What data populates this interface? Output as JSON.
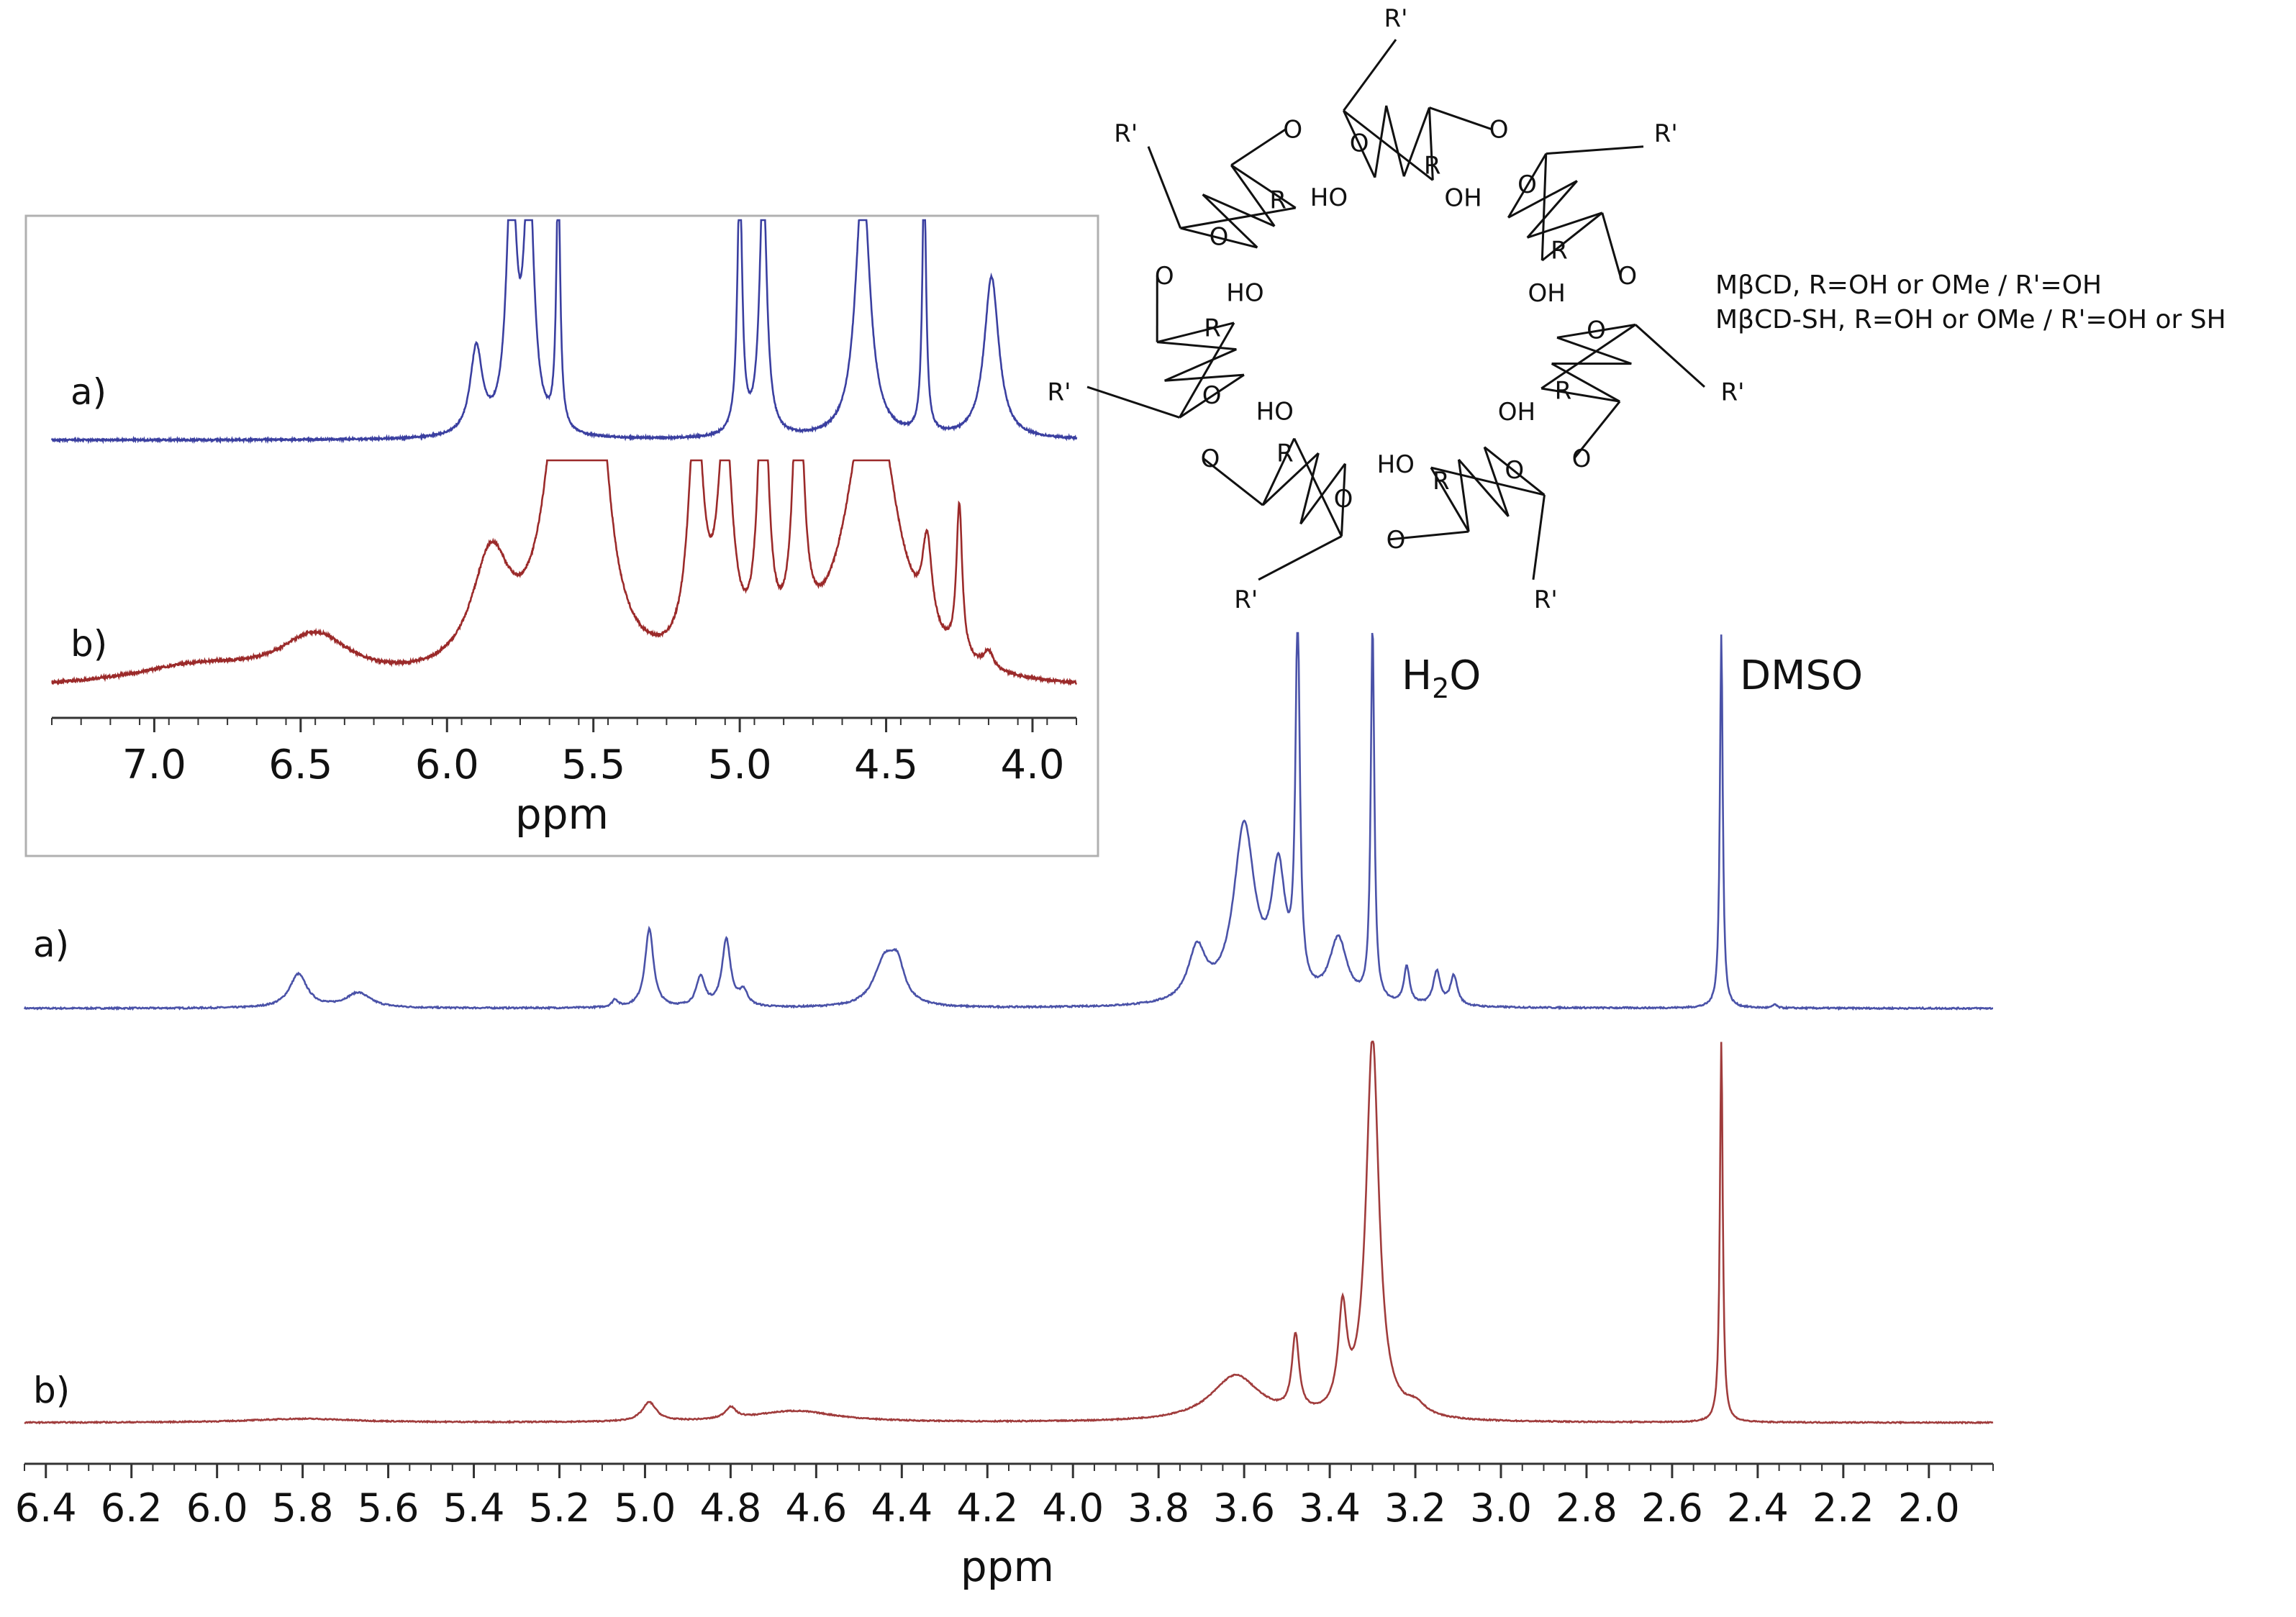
{
  "chart_data": [
    {
      "type": "line",
      "role": "main-spectrum",
      "xlabel": "ppm",
      "xlim": [
        6.45,
        1.85
      ],
      "x_reversed": true,
      "x_ticks": [
        "6.4",
        "6.2",
        "6.0",
        "5.8",
        "5.6",
        "5.4",
        "5.2",
        "5.0",
        "4.8",
        "4.6",
        "4.4",
        "4.2",
        "4.0",
        "3.8",
        "3.6",
        "3.4",
        "3.2",
        "3.0",
        "2.8",
        "2.6",
        "2.4",
        "2.2",
        "2.0"
      ],
      "series": [
        {
          "name": "a)",
          "color": "#4a52a8",
          "peaks": [
            {
              "ppm": 5.81,
              "height": 0.09,
              "width": 0.025
            },
            {
              "ppm": 5.67,
              "height": 0.04,
              "width": 0.035
            },
            {
              "ppm": 5.07,
              "height": 0.02,
              "width": 0.008
            },
            {
              "ppm": 4.99,
              "height": 0.21,
              "width": 0.012
            },
            {
              "ppm": 4.87,
              "height": 0.08,
              "width": 0.012
            },
            {
              "ppm": 4.81,
              "height": 0.18,
              "width": 0.012
            },
            {
              "ppm": 4.77,
              "height": 0.04,
              "width": 0.012
            },
            {
              "ppm": 4.44,
              "height": 0.12,
              "width": 0.03
            },
            {
              "ppm": 4.41,
              "height": 0.09,
              "width": 0.02
            },
            {
              "ppm": 3.71,
              "height": 0.14,
              "width": 0.025
            },
            {
              "ppm": 3.6,
              "height": 0.47,
              "width": 0.03
            },
            {
              "ppm": 3.52,
              "height": 0.33,
              "width": 0.02
            },
            {
              "ppm": 3.475,
              "height": 1.0,
              "width": 0.006
            },
            {
              "ppm": 3.38,
              "height": 0.17,
              "width": 0.025
            },
            {
              "ppm": 3.3,
              "height": 1.0,
              "width": 0.005
            },
            {
              "ppm": 3.22,
              "height": 0.1,
              "width": 0.008
            },
            {
              "ppm": 3.15,
              "height": 0.09,
              "width": 0.01
            },
            {
              "ppm": 3.11,
              "height": 0.08,
              "width": 0.01
            },
            {
              "ppm": 2.485,
              "height": 1.0,
              "width": 0.004
            },
            {
              "ppm": 2.36,
              "height": 0.01,
              "width": 0.005
            }
          ]
        },
        {
          "name": "b)",
          "color": "#a03c3c",
          "peaks": [
            {
              "ppm": 5.8,
              "height": 0.01,
              "width": 0.15
            },
            {
              "ppm": 4.99,
              "height": 0.05,
              "width": 0.02
            },
            {
              "ppm": 4.8,
              "height": 0.03,
              "width": 0.015
            },
            {
              "ppm": 4.65,
              "height": 0.03,
              "width": 0.12
            },
            {
              "ppm": 3.62,
              "height": 0.12,
              "width": 0.07
            },
            {
              "ppm": 3.48,
              "height": 0.2,
              "width": 0.01
            },
            {
              "ppm": 3.37,
              "height": 0.26,
              "width": 0.012
            },
            {
              "ppm": 3.3,
              "height": 1.0,
              "width": 0.018
            },
            {
              "ppm": 3.2,
              "height": 0.03,
              "width": 0.03
            },
            {
              "ppm": 2.485,
              "height": 1.0,
              "width": 0.004
            }
          ]
        }
      ],
      "annotations": [
        {
          "text": "H2O",
          "ppm": 3.3
        },
        {
          "text": "DMSO",
          "ppm": 2.485
        }
      ]
    },
    {
      "type": "line",
      "role": "inset-spectrum",
      "xlabel": "ppm",
      "xlim": [
        7.35,
        3.85
      ],
      "x_reversed": true,
      "x_ticks": [
        "7.0",
        "6.5",
        "6.0",
        "5.5",
        "5.0",
        "4.5",
        "4.0"
      ],
      "series": [
        {
          "name": "a)",
          "color": "#3a3fa0",
          "peaks": [
            {
              "ppm": 5.9,
              "height": 0.4,
              "width": 0.025
            },
            {
              "ppm": 5.78,
              "height": 1.2,
              "width": 0.02
            },
            {
              "ppm": 5.72,
              "height": 1.2,
              "width": 0.02
            },
            {
              "ppm": 5.62,
              "height": 1.2,
              "width": 0.008
            },
            {
              "ppm": 5.0,
              "height": 1.2,
              "width": 0.01
            },
            {
              "ppm": 4.92,
              "height": 1.2,
              "width": 0.015
            },
            {
              "ppm": 4.58,
              "height": 1.2,
              "width": 0.03
            },
            {
              "ppm": 4.37,
              "height": 1.2,
              "width": 0.008
            },
            {
              "ppm": 4.14,
              "height": 0.75,
              "width": 0.03
            }
          ]
        },
        {
          "name": "b)",
          "color": "#9b2a2a",
          "peaks": [
            {
              "ppm": 6.85,
              "height": 0.08,
              "width": 0.3
            },
            {
              "ppm": 6.45,
              "height": 0.18,
              "width": 0.15
            },
            {
              "ppm": 5.85,
              "height": 0.45,
              "width": 0.08
            },
            {
              "ppm": 5.6,
              "height": 1.2,
              "width": 0.07
            },
            {
              "ppm": 5.5,
              "height": 1.2,
              "width": 0.05
            },
            {
              "ppm": 5.15,
              "height": 1.0,
              "width": 0.03
            },
            {
              "ppm": 5.05,
              "height": 0.9,
              "width": 0.03
            },
            {
              "ppm": 4.92,
              "height": 1.2,
              "width": 0.02
            },
            {
              "ppm": 4.8,
              "height": 1.2,
              "width": 0.02
            },
            {
              "ppm": 4.55,
              "height": 1.2,
              "width": 0.1
            },
            {
              "ppm": 4.36,
              "height": 0.35,
              "width": 0.02
            },
            {
              "ppm": 4.25,
              "height": 0.6,
              "width": 0.012
            },
            {
              "ppm": 4.15,
              "height": 0.07,
              "width": 0.02
            }
          ]
        }
      ]
    }
  ],
  "labels": {
    "main_a": "a)",
    "main_b": "b)",
    "inset_a": "a)",
    "inset_b": "b)",
    "h2o_main": "H",
    "h2o_sub": "2",
    "h2o_end": "O",
    "dmso": "DMSO",
    "main_xlabel": "ppm",
    "inset_xlabel": "ppm",
    "legend_line1": "MβCD, R=OH or OMe / R'=OH",
    "legend_line2": "MβCD-SH, R=OH or OMe / R'=OH or SH"
  },
  "structure": {
    "r_prime": "R'",
    "r": "R",
    "oxygen": "O",
    "hydroxyl_right": "OH",
    "hydroxyl_left": "HO"
  }
}
